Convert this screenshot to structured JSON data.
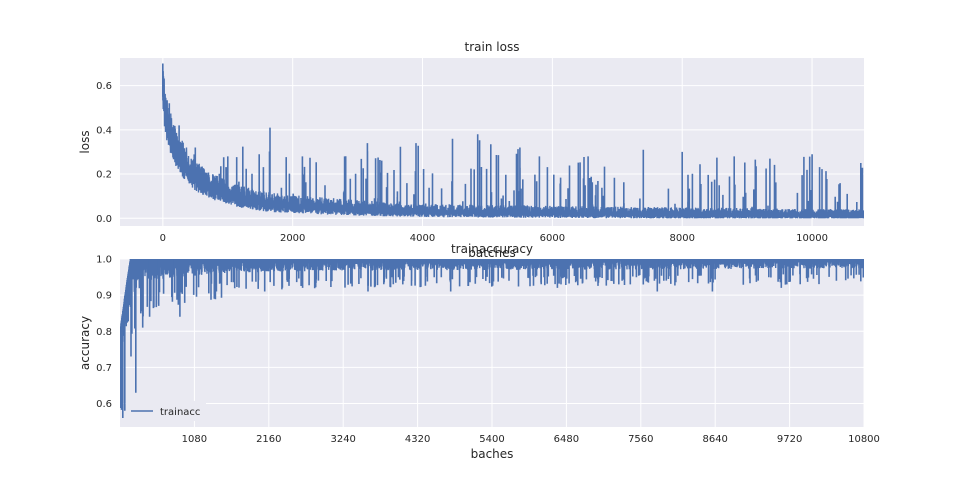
{
  "chart_data": [
    {
      "type": "line",
      "title": "train loss",
      "xlabel": "batches",
      "ylabel": "loss",
      "xlim": [
        -660,
        10800
      ],
      "ylim": [
        -0.035,
        0.725
      ],
      "x_ticks": [
        0,
        2000,
        4000,
        6000,
        8000,
        10000
      ],
      "x_tick_labels": [
        "0",
        "2000",
        "4000",
        "6000",
        "8000",
        "10000"
      ],
      "y_ticks": [
        0.0,
        0.2,
        0.4,
        0.6
      ],
      "y_tick_labels": [
        "0.0",
        "0.2",
        "0.4",
        "0.6"
      ],
      "grid": true,
      "legend": "none",
      "series": [
        {
          "color": "#4c72b0",
          "x_range": [
            0,
            10800
          ],
          "baseline": [
            [
              0,
              0.55
            ],
            [
              50,
              0.42
            ],
            [
              150,
              0.32
            ],
            [
              300,
              0.24
            ],
            [
              500,
              0.17
            ],
            [
              800,
              0.12
            ],
            [
              1200,
              0.08
            ],
            [
              1600,
              0.06
            ],
            [
              2000,
              0.05
            ],
            [
              3000,
              0.035
            ],
            [
              4000,
              0.025
            ],
            [
              6000,
              0.02
            ],
            [
              8000,
              0.015
            ],
            [
              10800,
              0.01
            ]
          ],
          "band": [
            [
              0,
              0.14
            ],
            [
              400,
              0.1
            ],
            [
              1000,
              0.07
            ],
            [
              2000,
              0.055
            ],
            [
              4000,
              0.04
            ],
            [
              10800,
              0.03
            ]
          ],
          "peaks": [
            [
              0,
              0.7
            ],
            [
              100,
              0.52
            ],
            [
              250,
              0.42
            ],
            [
              500,
              0.32
            ],
            [
              1000,
              0.28
            ],
            [
              1650,
              0.41
            ],
            [
              2150,
              0.28
            ],
            [
              2800,
              0.28
            ],
            [
              3150,
              0.34
            ],
            [
              3900,
              0.34
            ],
            [
              4850,
              0.38
            ],
            [
              5500,
              0.32
            ],
            [
              5800,
              0.28
            ],
            [
              6550,
              0.28
            ],
            [
              7400,
              0.31
            ],
            [
              8000,
              0.3
            ],
            [
              8800,
              0.28
            ],
            [
              9350,
              0.27
            ],
            [
              10000,
              0.29
            ],
            [
              10750,
              0.25
            ]
          ],
          "spike_count": 230
        }
      ]
    },
    {
      "type": "line",
      "title": "trainaccuracy",
      "xlabel": "baches",
      "ylabel": "accuracy",
      "xlim": [
        0,
        10800
      ],
      "ylim": [
        0.535,
        1.0
      ],
      "x_ticks": [
        1080,
        2160,
        3240,
        4320,
        5400,
        6480,
        7560,
        8640,
        9720,
        10800
      ],
      "x_tick_labels": [
        "1080",
        "2160",
        "3240",
        "4320",
        "5400",
        "6480",
        "7560",
        "8640",
        "9720",
        "10800"
      ],
      "y_ticks": [
        0.6,
        0.7,
        0.8,
        0.9,
        1.0
      ],
      "y_tick_labels": [
        "0.6",
        "0.7",
        "0.8",
        "0.9",
        "1.0"
      ],
      "grid": true,
      "legend": "lower-left",
      "series": [
        {
          "name": "trainacc",
          "color": "#4c72b0",
          "x_range": [
            0,
            10800
          ],
          "upper": [
            [
              0,
              0.8
            ],
            [
              100,
              0.94
            ],
            [
              150,
              1.0
            ],
            [
              10800,
              1.0
            ]
          ],
          "lower": [
            [
              0,
              0.6
            ],
            [
              80,
              0.7
            ],
            [
              200,
              0.85
            ],
            [
              400,
              0.91
            ],
            [
              800,
              0.92
            ],
            [
              1500,
              0.94
            ],
            [
              3000,
              0.95
            ],
            [
              10800,
              0.96
            ]
          ],
          "dips": [
            [
              40,
              0.56
            ],
            [
              70,
              0.58
            ],
            [
              160,
              0.73
            ],
            [
              230,
              0.63
            ],
            [
              330,
              0.81
            ],
            [
              430,
              0.84
            ],
            [
              560,
              0.875
            ],
            [
              870,
              0.84
            ],
            [
              1400,
              0.91
            ],
            [
              2100,
              0.91
            ],
            [
              2650,
              0.92
            ],
            [
              3600,
              0.91
            ],
            [
              4800,
              0.91
            ],
            [
              6350,
              0.92
            ],
            [
              7800,
              0.91
            ],
            [
              8600,
              0.91
            ],
            [
              9600,
              0.92
            ],
            [
              10400,
              0.94
            ]
          ],
          "spike_count": 260
        }
      ]
    }
  ]
}
